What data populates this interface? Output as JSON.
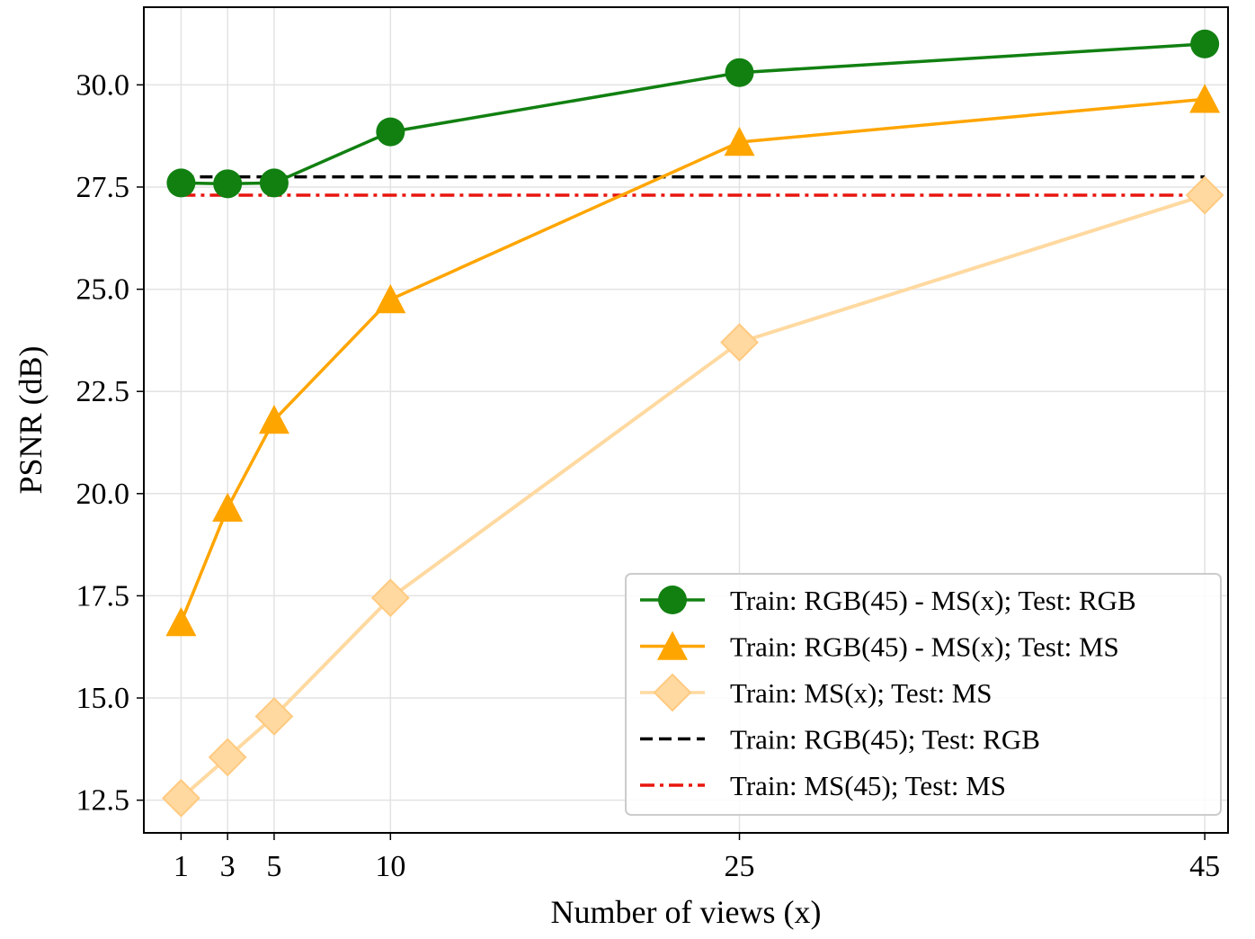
{
  "chart_data": {
    "type": "line",
    "xlabel": "Number of views (x)",
    "ylabel": "PSNR (dB)",
    "xlim": [
      -0.6,
      46.0
    ],
    "ylim": [
      11.7,
      31.9
    ],
    "x_ticks": [
      1,
      3,
      5,
      10,
      25,
      45
    ],
    "y_ticks": [
      12.5,
      15.0,
      17.5,
      20.0,
      22.5,
      25.0,
      27.5,
      30.0
    ],
    "grid": true,
    "legend_position": "bottom-right",
    "x": [
      1,
      3,
      5,
      10,
      25,
      45
    ],
    "series": [
      {
        "name": "Train: RGB(45) - MS(x); Test: RGB",
        "color": "#118011",
        "marker": "circle",
        "linestyle": "solid",
        "values": [
          27.6,
          27.58,
          27.6,
          28.85,
          30.3,
          31.0
        ]
      },
      {
        "name": "Train: RGB(45) - MS(x); Test: MS",
        "color": "#ffa500",
        "marker": "triangle",
        "linestyle": "solid",
        "values": [
          16.85,
          19.65,
          21.8,
          24.75,
          28.6,
          29.65
        ]
      },
      {
        "name": "Train: MS(x); Test: MS",
        "color": "#ffd9a0",
        "marker": "diamond",
        "linestyle": "solid",
        "values": [
          12.55,
          13.55,
          14.55,
          17.45,
          23.7,
          27.3
        ]
      },
      {
        "name": "Train: RGB(45); Test: RGB",
        "color": "#000000",
        "marker": "none",
        "linestyle": "dashed",
        "constant": 27.75,
        "x_range": [
          1,
          45
        ]
      },
      {
        "name": "Train: MS(45); Test: MS",
        "color": "#e8150f",
        "marker": "none",
        "linestyle": "dashdot",
        "constant": 27.3,
        "x_range": [
          1,
          45
        ]
      }
    ]
  }
}
